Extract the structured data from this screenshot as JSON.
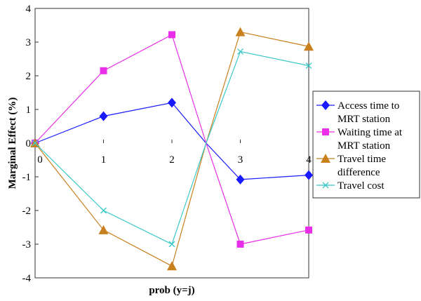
{
  "chart_data": {
    "type": "line",
    "x": [
      0,
      1,
      2,
      2.5,
      3,
      4
    ],
    "xlim": [
      0,
      4
    ],
    "ylim": [
      -4,
      4
    ],
    "xticks": [
      "0",
      "1",
      "2",
      "3",
      "4"
    ],
    "yticks": [
      "4",
      "3",
      "2",
      "1",
      "0",
      "-1",
      "-2",
      "-3",
      "-4"
    ],
    "xlabel": "prob (y=j)",
    "ylabel": "Marginal Effect (%)",
    "grid": false,
    "legend_position": "right",
    "series": [
      {
        "name_lines": [
          "Access time to",
          "MRT station"
        ],
        "color": "#1a1aff",
        "marker": "diamond",
        "values": [
          0,
          0.8,
          1.2,
          0,
          -1.08,
          -0.95
        ]
      },
      {
        "name_lines": [
          "Waiting time at",
          "MRT station"
        ],
        "color": "#e82ee8",
        "marker": "square",
        "values": [
          0,
          2.15,
          3.22,
          0,
          -3.0,
          -2.58
        ]
      },
      {
        "name_lines": [
          "Travel time",
          "difference"
        ],
        "color": "#c8801e",
        "marker": "triangle",
        "values": [
          0,
          -2.58,
          -3.65,
          0,
          3.3,
          2.87
        ]
      },
      {
        "name_lines": [
          "Travel cost"
        ],
        "color": "#3cc8c8",
        "marker": "x",
        "values": [
          0,
          -2.0,
          -3.0,
          0,
          2.72,
          2.3
        ]
      }
    ]
  }
}
